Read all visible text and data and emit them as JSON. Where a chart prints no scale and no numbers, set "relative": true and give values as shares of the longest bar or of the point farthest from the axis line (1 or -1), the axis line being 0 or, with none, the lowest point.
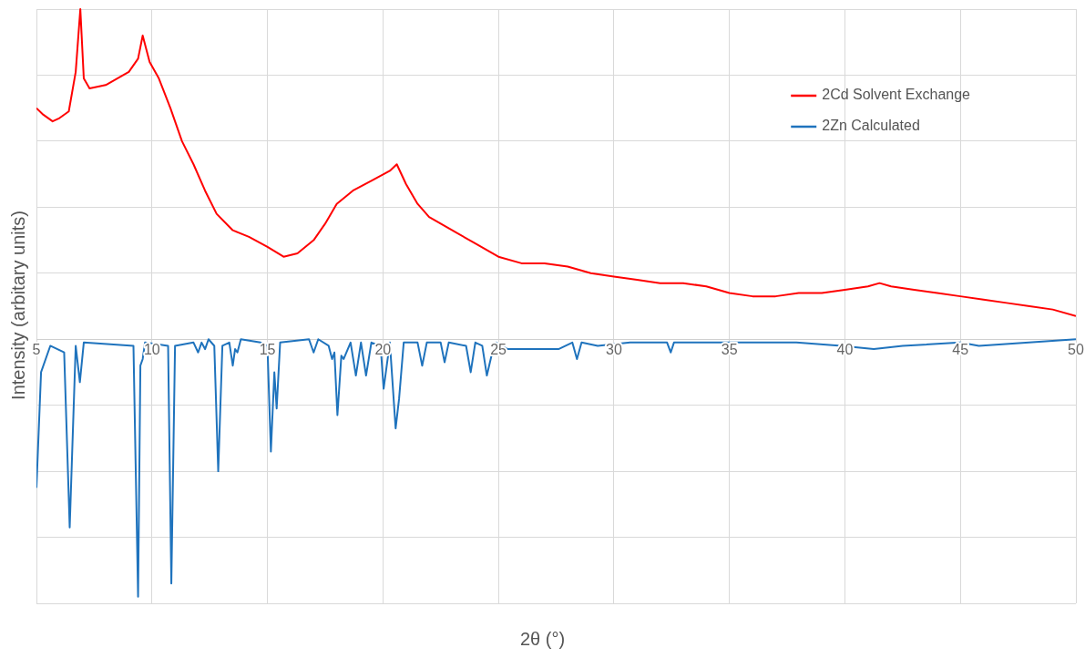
{
  "chart_data": {
    "type": "line",
    "xlabel": "2θ (°)",
    "ylabel": "Intensity (arbitary units)",
    "relative": true,
    "xlim": [
      5,
      50
    ],
    "xticks": [
      5,
      10,
      15,
      20,
      25,
      30,
      35,
      40,
      45,
      50
    ],
    "grid": true,
    "legend": "top right",
    "marker": "none",
    "line_style": "solid",
    "series": [
      {
        "name": "2Cd Solvent Exchange",
        "color": "#ff0000",
        "x": [
          5,
          5.3,
          5.7,
          6,
          6.4,
          6.7,
          6.9,
          7.05,
          7.3,
          8,
          8.5,
          9,
          9.4,
          9.6,
          9.9,
          10.3,
          10.8,
          11.3,
          11.8,
          12.3,
          12.8,
          13.5,
          14.2,
          15,
          15.7,
          16.3,
          17,
          17.5,
          18,
          18.7,
          19.5,
          20.3,
          20.6,
          21,
          21.5,
          22,
          23,
          24,
          25,
          26,
          27,
          28,
          29,
          30,
          31,
          32,
          33,
          34,
          35,
          36,
          37,
          38,
          39,
          40,
          41,
          41.5,
          42,
          43,
          44,
          45,
          46,
          47,
          48,
          49,
          50
        ],
        "values": [
          0.7,
          0.68,
          0.66,
          0.67,
          0.69,
          0.81,
          1,
          0.79,
          0.76,
          0.77,
          0.79,
          0.81,
          0.85,
          0.92,
          0.84,
          0.79,
          0.7,
          0.6,
          0.53,
          0.45,
          0.38,
          0.33,
          0.31,
          0.28,
          0.25,
          0.26,
          0.3,
          0.35,
          0.41,
          0.45,
          0.48,
          0.51,
          0.53,
          0.47,
          0.41,
          0.37,
          0.33,
          0.29,
          0.25,
          0.23,
          0.23,
          0.22,
          0.2,
          0.19,
          0.18,
          0.17,
          0.17,
          0.16,
          0.14,
          0.13,
          0.13,
          0.14,
          0.14,
          0.15,
          0.16,
          0.17,
          0.16,
          0.15,
          0.14,
          0.13,
          0.12,
          0.11,
          0.1,
          0.09,
          0.07
        ]
      },
      {
        "name": "2Zn Calculated",
        "color": "#1f73bd",
        "x": [
          5,
          5.2,
          5.6,
          6.2,
          6.44,
          6.7,
          6.88,
          7.05,
          9.2,
          9.4,
          9.5,
          9.6,
          9.7,
          10.7,
          10.84,
          11,
          11.8,
          12,
          12.15,
          12.3,
          12.45,
          12.7,
          12.87,
          13.05,
          13.35,
          13.5,
          13.6,
          13.7,
          13.85,
          14.7,
          15.0,
          15.15,
          15.3,
          15.4,
          15.55,
          16.8,
          17,
          17.2,
          17.65,
          17.8,
          17.9,
          18.03,
          18.2,
          18.3,
          18.6,
          18.83,
          19.05,
          19.27,
          19.5,
          19.9,
          20.03,
          20.3,
          20.55,
          20.7,
          20.9,
          21.5,
          21.7,
          21.9,
          22.5,
          22.67,
          22.85,
          23.6,
          23.8,
          24.0,
          24.3,
          24.5,
          24.7,
          24.9,
          25.4,
          26.5,
          27.6,
          28.2,
          28.4,
          28.6,
          29.3,
          30.7,
          32.3,
          32.46,
          32.6,
          34.2,
          37.9,
          39.85,
          41.25,
          42.5,
          45,
          45.8,
          50
        ],
        "values": [
          -0.45,
          -0.1,
          -0.02,
          -0.04,
          -0.57,
          -0.02,
          -0.13,
          -0.01,
          -0.02,
          -0.78,
          -0.08,
          -0.06,
          -0.01,
          -0.02,
          -0.74,
          -0.02,
          -0.01,
          -0.04,
          -0.01,
          -0.03,
          0,
          -0.02,
          -0.4,
          -0.02,
          -0.01,
          -0.08,
          -0.03,
          -0.04,
          0,
          -0.01,
          -0.02,
          -0.34,
          -0.1,
          -0.21,
          -0.01,
          0,
          -0.04,
          0,
          -0.02,
          -0.06,
          -0.04,
          -0.23,
          -0.05,
          -0.06,
          -0.01,
          -0.11,
          -0.01,
          -0.11,
          -0.01,
          -0.02,
          -0.15,
          -0.01,
          -0.27,
          -0.18,
          -0.01,
          -0.01,
          -0.08,
          -0.01,
          -0.01,
          -0.07,
          -0.01,
          -0.02,
          -0.1,
          -0.01,
          -0.02,
          -0.11,
          -0.05,
          -0.01,
          -0.03,
          -0.03,
          -0.03,
          -0.01,
          -0.06,
          -0.01,
          -0.02,
          -0.01,
          -0.01,
          -0.04,
          -0.01,
          -0.01,
          -0.01,
          -0.02,
          -0.03,
          -0.02,
          -0.01,
          -0.02,
          0
        ]
      }
    ]
  }
}
